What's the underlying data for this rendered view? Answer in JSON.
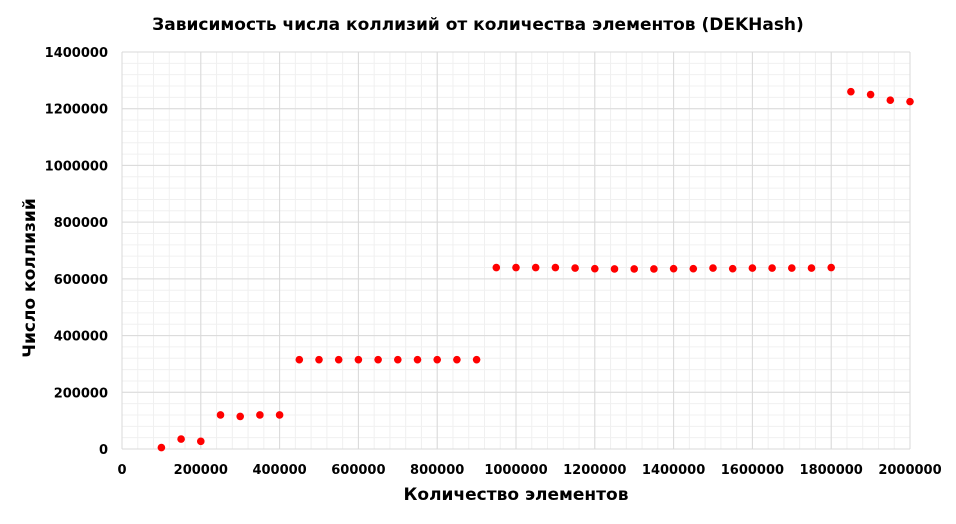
{
  "chart_data": {
    "type": "scatter",
    "title": "Зависимость числа коллизий от количества элементов (DEKHash)",
    "xlabel": "Количество элементов",
    "ylabel": "Число коллизий",
    "xlim": [
      0,
      2000000
    ],
    "ylim": [
      0,
      1400000
    ],
    "x_ticks": [
      0,
      200000,
      400000,
      600000,
      800000,
      1000000,
      1200000,
      1400000,
      1600000,
      1800000,
      2000000
    ],
    "y_ticks": [
      0,
      200000,
      400000,
      600000,
      800000,
      1000000,
      1200000,
      1400000
    ],
    "x_tick_labels": [
      "0",
      "200000",
      "400000",
      "600000",
      "800000",
      "1000000",
      "1200000",
      "1400000",
      "1600000",
      "1800000",
      "2000000"
    ],
    "y_tick_labels": [
      "0",
      "200000",
      "400000",
      "600000",
      "800000",
      "1000000",
      "1200000",
      "1400000"
    ],
    "grid": true,
    "legend": "none",
    "series": [
      {
        "color": "#ff0000",
        "x": [
          100000,
          150000,
          200000,
          250000,
          300000,
          350000,
          400000,
          450000,
          500000,
          550000,
          600000,
          650000,
          700000,
          750000,
          800000,
          850000,
          900000,
          950000,
          1000000,
          1050000,
          1100000,
          1150000,
          1200000,
          1250000,
          1300000,
          1350000,
          1400000,
          1450000,
          1500000,
          1550000,
          1600000,
          1650000,
          1700000,
          1750000,
          1800000,
          1850000,
          1900000,
          1950000,
          2000000
        ],
        "y": [
          5000,
          35000,
          27000,
          120000,
          115000,
          120000,
          120000,
          315000,
          315000,
          315000,
          315000,
          315000,
          315000,
          315000,
          315000,
          315000,
          315000,
          640000,
          640000,
          640000,
          640000,
          638000,
          636000,
          635000,
          635000,
          635000,
          636000,
          636000,
          638000,
          636000,
          638000,
          638000,
          638000,
          638000,
          640000,
          1260000,
          1250000,
          1230000,
          1225000
        ]
      }
    ]
  }
}
